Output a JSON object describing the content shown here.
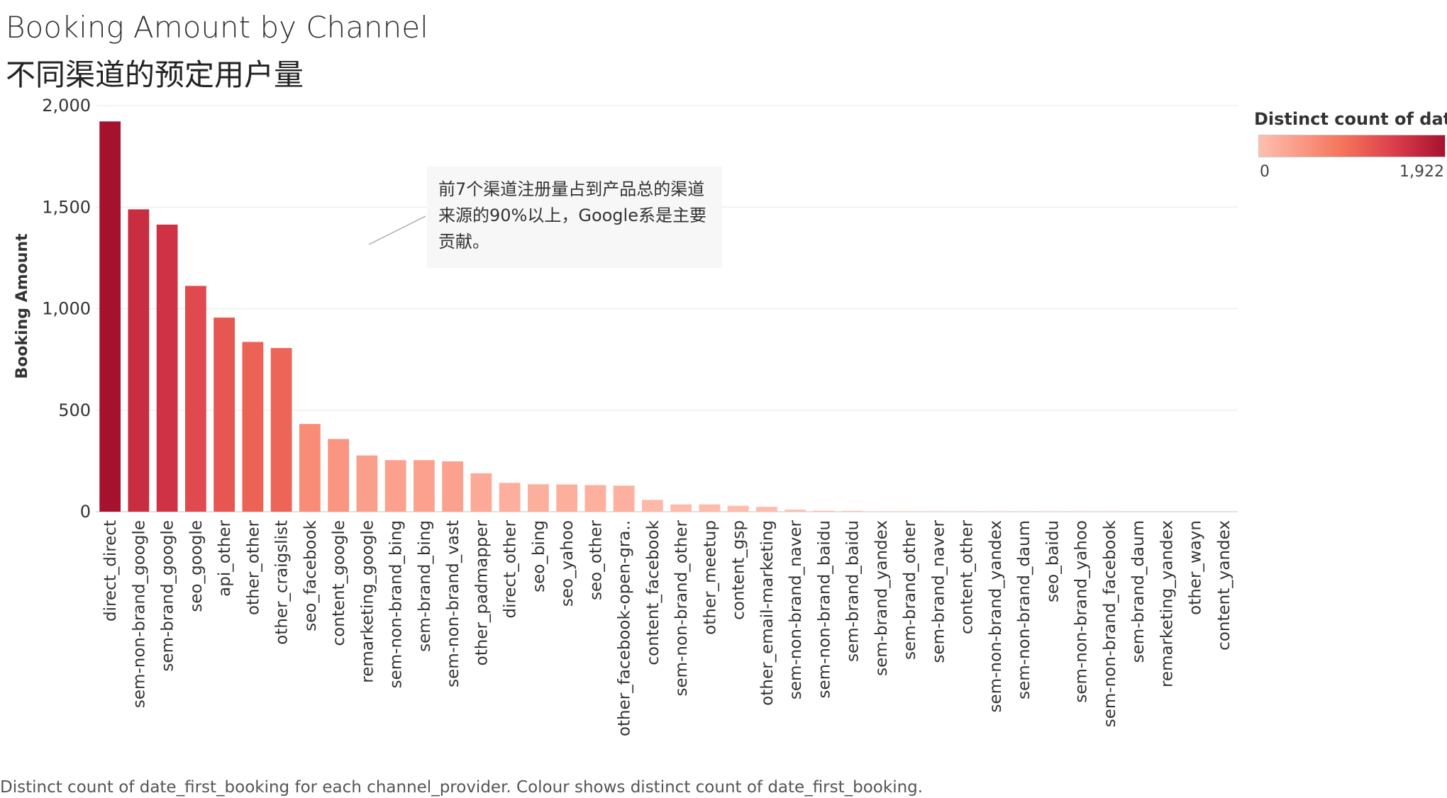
{
  "title": "Booking Amount by Channel",
  "subtitle": "不同渠道的预定用户量",
  "caption": "Distinct count of date_first_booking for each channel_provider.  Colour shows distinct count of date_first_booking.",
  "annotation": "前7个渠道注册量占到产品总的渠道来源的90%以上，Google系是主要贡献。",
  "legend": {
    "title": "Distinct count of date_..",
    "min_label": "0",
    "max_label": "1,922",
    "min": 0,
    "max": 1922,
    "colors": [
      "#ffbfb0",
      "#f4745a",
      "#d93a4a",
      "#a5122e"
    ]
  },
  "chart_data": {
    "type": "bar",
    "ylabel": "Booking Amount",
    "xlabel": "",
    "ylim": [
      0,
      2000
    ],
    "yticks": [
      0,
      500,
      1000,
      1500,
      2000
    ],
    "ytick_labels": [
      "0",
      "500",
      "1,000",
      "1,500",
      "2,000"
    ],
    "grid": true,
    "categories": [
      "direct_direct",
      "sem-non-brand_google",
      "sem-brand_google",
      "seo_google",
      "api_other",
      "other_other",
      "other_craigslist",
      "seo_facebook",
      "content_google",
      "remarketing_google",
      "sem-non-brand_bing",
      "sem-brand_bing",
      "sem-non-brand_vast",
      "other_padmapper",
      "direct_other",
      "seo_bing",
      "seo_yahoo",
      "seo_other",
      "other_facebook-open-gra..",
      "content_facebook",
      "sem-non-brand_other",
      "other_meetup",
      "content_gsp",
      "other_email-marketing",
      "sem-non-brand_naver",
      "sem-non-brand_baidu",
      "sem-brand_baidu",
      "sem-brand_yandex",
      "sem-brand_other",
      "sem-brand_naver",
      "content_other",
      "sem-non-brand_yandex",
      "sem-non-brand_daum",
      "seo_baidu",
      "sem-non-brand_yahoo",
      "sem-non-brand_facebook",
      "sem-brand_daum",
      "remarketing_yandex",
      "other_wayn",
      "content_yandex"
    ],
    "values": [
      1922,
      1489,
      1414,
      1112,
      956,
      836,
      806,
      432,
      358,
      277,
      254,
      254,
      248,
      189,
      142,
      135,
      134,
      131,
      128,
      58,
      36,
      36,
      29,
      24,
      10,
      5,
      4,
      2,
      2,
      1,
      1,
      1,
      1,
      1,
      1,
      1,
      0,
      0,
      0,
      0
    ]
  }
}
